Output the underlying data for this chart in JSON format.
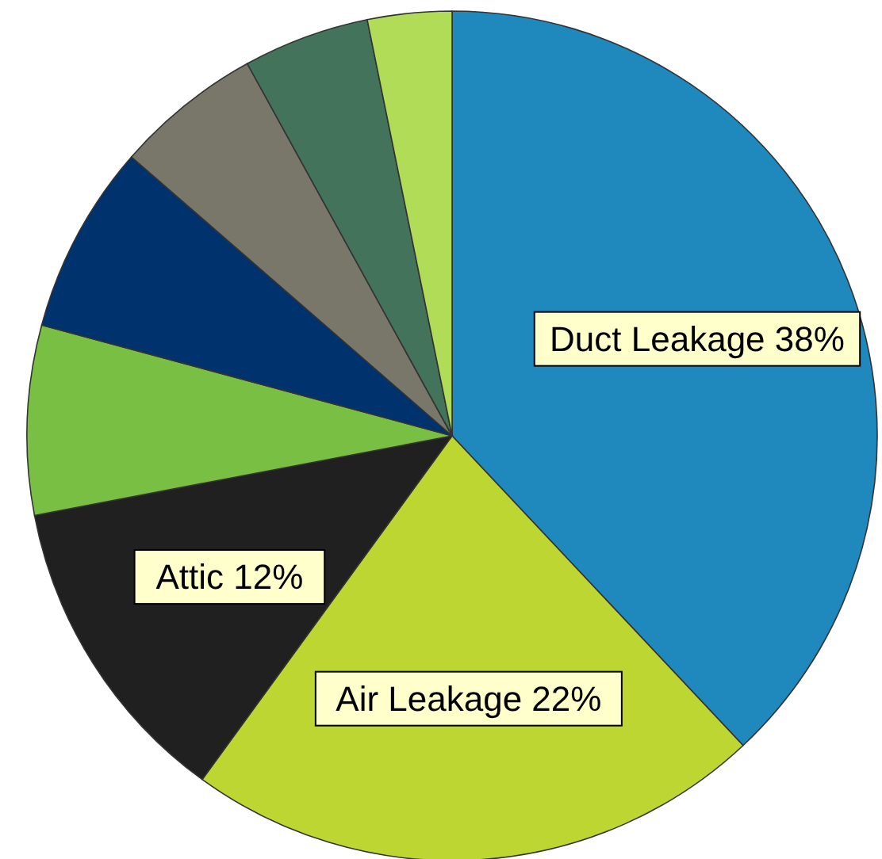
{
  "chart_data": {
    "type": "pie",
    "categories": [
      "Duct Leakage",
      "Air Leakage",
      "Attic",
      null,
      null,
      null,
      null,
      null
    ],
    "values": [
      38,
      22,
      12,
      7.2,
      7.2,
      5.6,
      4.8,
      3.2
    ],
    "colors": [
      "#1f88bd",
      "#bdd631",
      "#202020",
      "#79bf43",
      "#00336e",
      "#78776a",
      "#44735c",
      "#b0dc57"
    ],
    "value_labels": [
      "38%",
      "22%",
      "12%",
      null,
      null,
      null,
      null,
      null
    ]
  }
}
